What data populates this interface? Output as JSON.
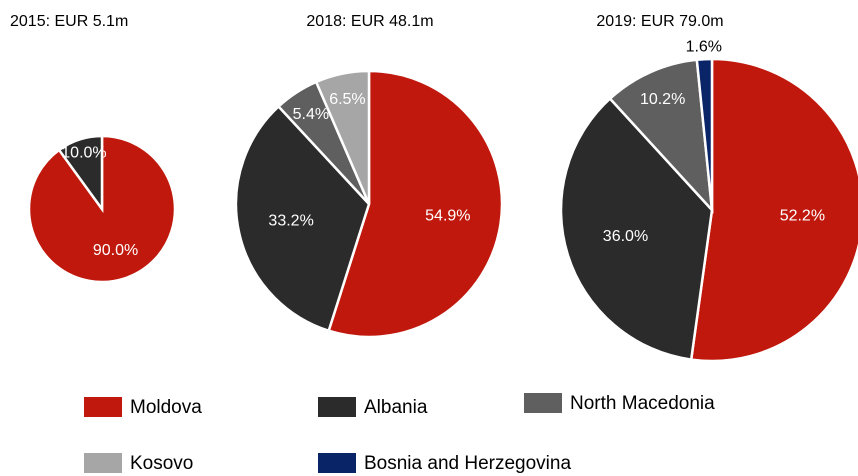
{
  "chart_data": [
    {
      "type": "pie",
      "title": "2015: EUR 5.1m",
      "categories": [
        "Moldova",
        "Albania"
      ],
      "values": [
        90,
        10
      ],
      "value_labels": [
        "90.0%",
        "10.0%"
      ],
      "colors": [
        "#c0180c",
        "#2b2b2b"
      ]
    },
    {
      "type": "pie",
      "title": "2018: EUR 48.1m",
      "categories": [
        "Moldova",
        "Albania",
        "North Macedonia",
        "Kosovo"
      ],
      "values": [
        54.9,
        33.2,
        5.4,
        6.5
      ],
      "value_labels": [
        "54.9%",
        "33.2%",
        "5.4%",
        "6.5%"
      ],
      "colors": [
        "#c0180c",
        "#2b2b2b",
        "#5f5f5f",
        "#a6a6a6"
      ]
    },
    {
      "type": "pie",
      "title": "2019: EUR 79.0m",
      "categories": [
        "Moldova",
        "Albania",
        "North Macedonia",
        "Bosnia and Herzegovina"
      ],
      "values": [
        52.2,
        36,
        10.2,
        1.6
      ],
      "value_labels": [
        "52.2%",
        "36.0%",
        "10.2%",
        "1.6%"
      ],
      "colors": [
        "#c0180c",
        "#2b2b2b",
        "#5f5f5f",
        "#0a2468"
      ]
    }
  ],
  "legend": [
    {
      "name": "Moldova",
      "color": "#c0180c"
    },
    {
      "name": "Albania",
      "color": "#2b2b2b"
    },
    {
      "name": "North Macedonia",
      "color": "#5f5f5f"
    },
    {
      "name": "Kosovo",
      "color": "#a6a6a6"
    },
    {
      "name": "Bosnia and Herzegovina",
      "color": "#0a2468"
    }
  ]
}
